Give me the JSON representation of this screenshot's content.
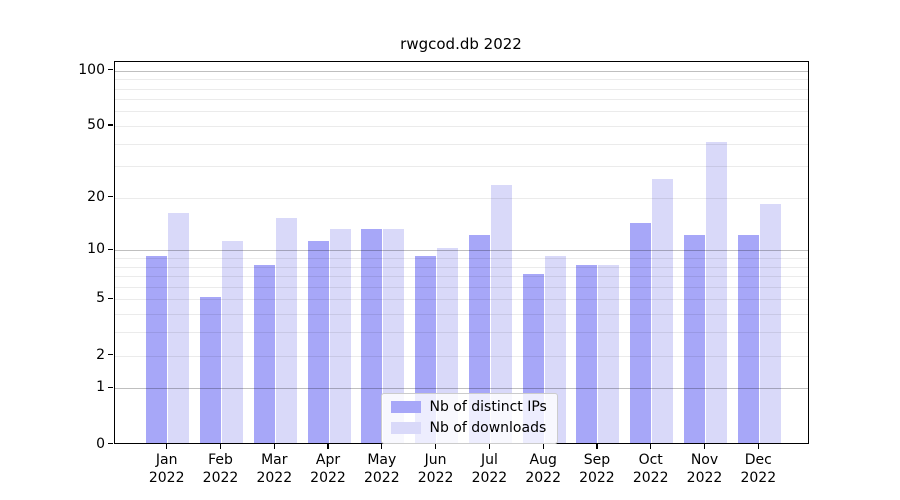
{
  "chart_data": {
    "type": "bar",
    "title": "rwgcod.db 2022",
    "categories": [
      "Jan 2022",
      "Feb 2022",
      "Mar 2022",
      "Apr 2022",
      "May 2022",
      "Jun 2022",
      "Jul 2022",
      "Aug 2022",
      "Sep 2022",
      "Oct 2022",
      "Nov 2022",
      "Dec 2022"
    ],
    "series": [
      {
        "name": "Nb of distinct IPs",
        "color": "#a7a7f8",
        "values": [
          9,
          5,
          8,
          11,
          13,
          9,
          12,
          7,
          8,
          14,
          12,
          12
        ]
      },
      {
        "name": "Nb of downloads",
        "color": "#d9d9f9",
        "values": [
          16,
          11,
          15,
          13,
          13,
          10,
          23,
          9,
          8,
          25,
          40,
          18
        ]
      }
    ],
    "yscale": "log1p",
    "ylim": [
      0,
      112
    ],
    "y_tick_values": [
      100,
      50,
      20,
      10,
      5,
      2,
      1,
      0
    ],
    "grid_major_values": [
      1,
      10,
      100
    ],
    "grid_minor_values": [
      2,
      3,
      4,
      5,
      6,
      7,
      8,
      9,
      20,
      30,
      40,
      50,
      60,
      70,
      80,
      90
    ],
    "legend_position": "lower center",
    "grid": true
  },
  "colors": {
    "bar_ips": "#a7a7f8",
    "bar_downloads": "#d9d9f9",
    "grid_major": "rgba(0,0,0,0.25)",
    "grid_minor": "rgba(0,0,0,0.08)",
    "spine": "#000000",
    "legend_border": "#cccccc",
    "legend_background": "rgba(255,255,255,0.8)"
  }
}
